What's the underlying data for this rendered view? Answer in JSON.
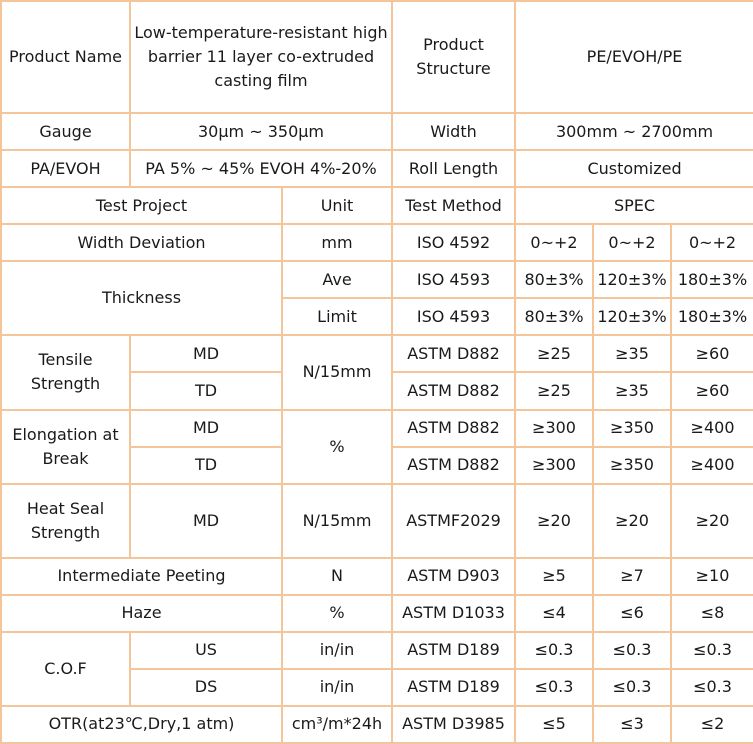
{
  "header": {
    "product_name_label": "Product Name",
    "product_name_value": "Low-temperature-resistant high barrier 11 layer co-extruded casting  film",
    "product_structure_label": "Product Structure",
    "product_structure_value": "PE/EVOH/PE",
    "gauge_label": "Gauge",
    "gauge_value": "30μm ~ 350μm",
    "width_label": "Width",
    "width_value": "300mm ~ 2700mm",
    "pa_evoh_label": "PA/EVOH",
    "pa_evoh_value": "PA 5% ~ 45%  EVOH 4%-20%",
    "roll_length_label": "Roll Length",
    "roll_length_value": "Customized"
  },
  "columns": {
    "test_project": "Test Project",
    "unit": "Unit",
    "test_method": "Test Method",
    "spec": "SPEC"
  },
  "rows": {
    "width_deviation": {
      "project": "Width Deviation",
      "unit": "mm",
      "method": "ISO 4592",
      "v1": "0~+2",
      "v2": "0~+2",
      "v3": "0~+2"
    },
    "thickness": {
      "project": "Thickness",
      "ave": {
        "sub": "Ave",
        "method": "ISO 4593",
        "v1": "80±3%",
        "v2": "120±3%",
        "v3": "180±3%"
      },
      "limit": {
        "sub": "Limit",
        "method": "ISO 4593",
        "v1": "80±3%",
        "v2": "120±3%",
        "v3": "180±3%"
      }
    },
    "tensile": {
      "project": "Tensile Strength",
      "unit": "N/15mm",
      "md": {
        "dir": "MD",
        "method": "ASTM D882",
        "v1": "≥25",
        "v2": "≥35",
        "v3": "≥60"
      },
      "td": {
        "dir": "TD",
        "method": "ASTM D882",
        "v1": "≥25",
        "v2": "≥35",
        "v3": "≥60"
      }
    },
    "elongation": {
      "project": "Elongation at Break",
      "unit": "%",
      "md": {
        "dir": "MD",
        "method": "ASTM D882",
        "v1": "≥300",
        "v2": "≥350",
        "v3": "≥400"
      },
      "td": {
        "dir": "TD",
        "method": "ASTM D882",
        "v1": "≥300",
        "v2": "≥350",
        "v3": "≥400"
      }
    },
    "heat_seal": {
      "project": "Heat Seal Strength",
      "dir": "MD",
      "unit": "N/15mm",
      "method": "ASTMF2029",
      "v1": "≥20",
      "v2": "≥20",
      "v3": "≥20"
    },
    "peeling": {
      "project": "Intermediate Peeting",
      "unit": "N",
      "method": "ASTM D903",
      "v1": "≥5",
      "v2": "≥7",
      "v3": "≥10"
    },
    "haze": {
      "project": "Haze",
      "unit": "%",
      "method": "ASTM D1033",
      "v1": "≤4",
      "v2": "≤6",
      "v3": "≤8"
    },
    "cof": {
      "project": "C.O.F",
      "us": {
        "dir": "US",
        "unit": "in/in",
        "method": "ASTM D189",
        "v1": "≤0.3",
        "v2": "≤0.3",
        "v3": "≤0.3"
      },
      "ds": {
        "dir": "DS",
        "unit": "in/in",
        "method": "ASTM D189",
        "v1": "≤0.3",
        "v2": "≤0.3",
        "v3": "≤0.3"
      }
    },
    "otr": {
      "project": "OTR(at23℃,Dry,1 atm)",
      "unit": "cm³/m*24h",
      "method": "ASTM D3985",
      "v1": "≤5",
      "v2": "≤3",
      "v3": "≤2"
    }
  },
  "colors": {
    "border": "#f4c59a",
    "background": "#fbe3cc",
    "text": "#1a1a1a"
  }
}
